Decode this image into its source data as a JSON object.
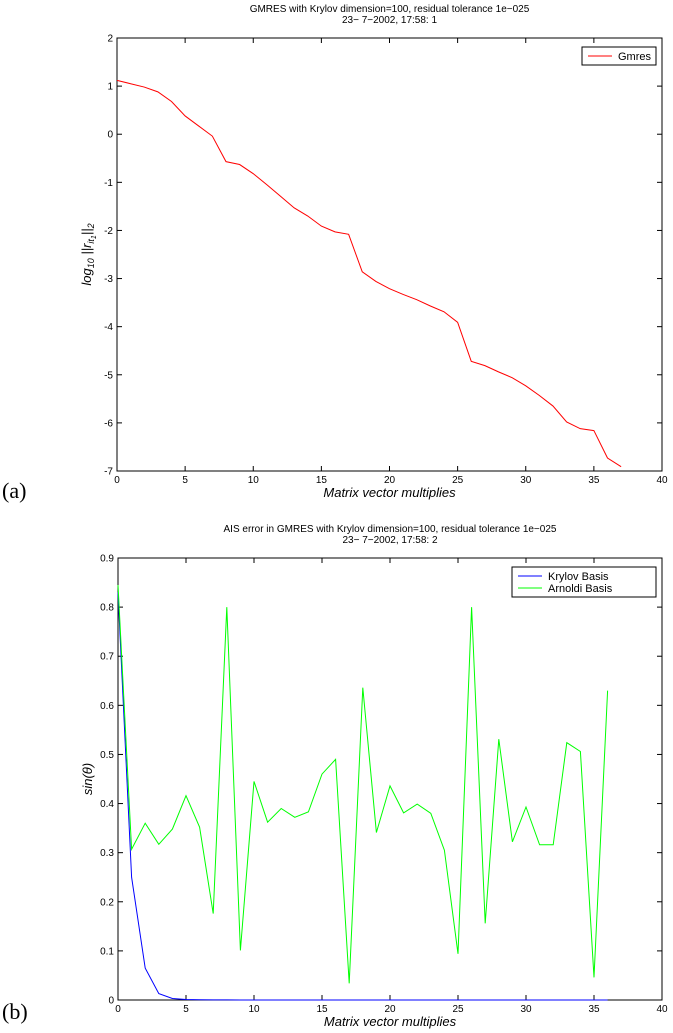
{
  "chart_data": [
    {
      "type": "line",
      "panel_label": "(a)",
      "title_lines": [
        "GMRES with Krylov dimension=100, residual tolerance 1e−025",
        "23− 7−2002, 17:58: 1"
      ],
      "xlabel": "Matrix vector multiplies",
      "ylabel": "log",
      "ylabel_sub": "10",
      "ylabel_mid": " ||r",
      "ylabel_sub2": "it",
      "ylabel_sub3": "1",
      "ylabel_end": "||",
      "ylabel_sub4": "2",
      "xlim": [
        0,
        40
      ],
      "ylim": [
        -7,
        2
      ],
      "xticks": [
        0,
        5,
        10,
        15,
        20,
        25,
        30,
        35,
        40
      ],
      "yticks": [
        -7,
        -6,
        -5,
        -4,
        -3,
        -2,
        -1,
        0,
        1,
        2
      ],
      "grid": false,
      "legend_position": "top-right",
      "series": [
        {
          "name": "Gmres",
          "color": "#ff0000",
          "x": [
            0,
            1,
            2,
            3,
            4,
            5,
            6,
            7,
            8,
            9,
            10,
            11,
            12,
            13,
            14,
            15,
            16,
            17,
            18,
            19,
            20,
            21,
            22,
            23,
            24,
            25,
            26,
            27,
            28,
            29,
            30,
            31,
            32,
            33,
            34,
            35,
            36,
            37
          ],
          "y": [
            1.12,
            1.05,
            0.98,
            0.88,
            0.68,
            0.38,
            0.17,
            -0.04,
            -0.57,
            -0.63,
            -0.82,
            -1.05,
            -1.29,
            -1.53,
            -1.7,
            -1.91,
            -2.03,
            -2.08,
            -2.86,
            -3.06,
            -3.21,
            -3.33,
            -3.44,
            -3.57,
            -3.69,
            -3.91,
            -4.72,
            -4.81,
            -4.94,
            -5.06,
            -5.23,
            -5.43,
            -5.65,
            -5.98,
            -6.12,
            -6.16,
            -6.73,
            -6.91
          ]
        }
      ]
    },
    {
      "type": "line",
      "panel_label": "(b)",
      "title_lines": [
        "AIS error in GMRES with Krylov dimension=100, residual tolerance 1e−025",
        "23− 7−2002, 17:58: 2"
      ],
      "xlabel": "Matrix vector multiplies",
      "ylabel": "sin(θ)",
      "xlim": [
        0,
        40
      ],
      "ylim": [
        0,
        0.9
      ],
      "xticks": [
        0,
        5,
        10,
        15,
        20,
        25,
        30,
        35,
        40
      ],
      "yticks": [
        0,
        0.1,
        0.2,
        0.3,
        0.4,
        0.5,
        0.6,
        0.7,
        0.8,
        0.9
      ],
      "grid": false,
      "legend_position": "top-right",
      "series": [
        {
          "name": "Krylov Basis",
          "color": "#0000ff",
          "x": [
            0,
            1,
            2,
            3,
            4,
            5,
            6,
            7,
            8,
            9,
            10,
            11,
            12,
            13,
            14,
            15,
            16,
            17,
            18,
            19,
            20,
            21,
            22,
            23,
            24,
            25,
            26,
            27,
            28,
            29,
            30,
            31,
            32,
            33,
            34,
            35,
            36
          ],
          "y": [
            0.83,
            0.25,
            0.065,
            0.013,
            0.003,
            0.001,
            0.0005,
            0.0003,
            0.0002,
            0.0001,
            0,
            0,
            0,
            0,
            0,
            0,
            0,
            0,
            0,
            0,
            0,
            0,
            0,
            0,
            0,
            0,
            0,
            0,
            0,
            0,
            0,
            0,
            0,
            0,
            0,
            0,
            0
          ]
        },
        {
          "name": "Arnoldi Basis",
          "color": "#00ff00",
          "x": [
            0,
            1,
            2,
            3,
            4,
            5,
            6,
            7,
            8,
            9,
            10,
            11,
            12,
            13,
            14,
            15,
            16,
            17,
            18,
            19,
            20,
            21,
            22,
            23,
            24,
            25,
            26,
            27,
            28,
            29,
            30,
            31,
            32,
            33,
            34,
            35,
            36
          ],
          "y": [
            0.845,
            0.307,
            0.36,
            0.317,
            0.348,
            0.416,
            0.352,
            0.176,
            0.8,
            0.101,
            0.445,
            0.362,
            0.39,
            0.372,
            0.383,
            0.46,
            0.49,
            0.034,
            0.636,
            0.341,
            0.436,
            0.381,
            0.399,
            0.38,
            0.305,
            0.094,
            0.8,
            0.156,
            0.531,
            0.322,
            0.393,
            0.316,
            0.316,
            0.524,
            0.506,
            0.046,
            0.63
          ]
        }
      ]
    }
  ]
}
